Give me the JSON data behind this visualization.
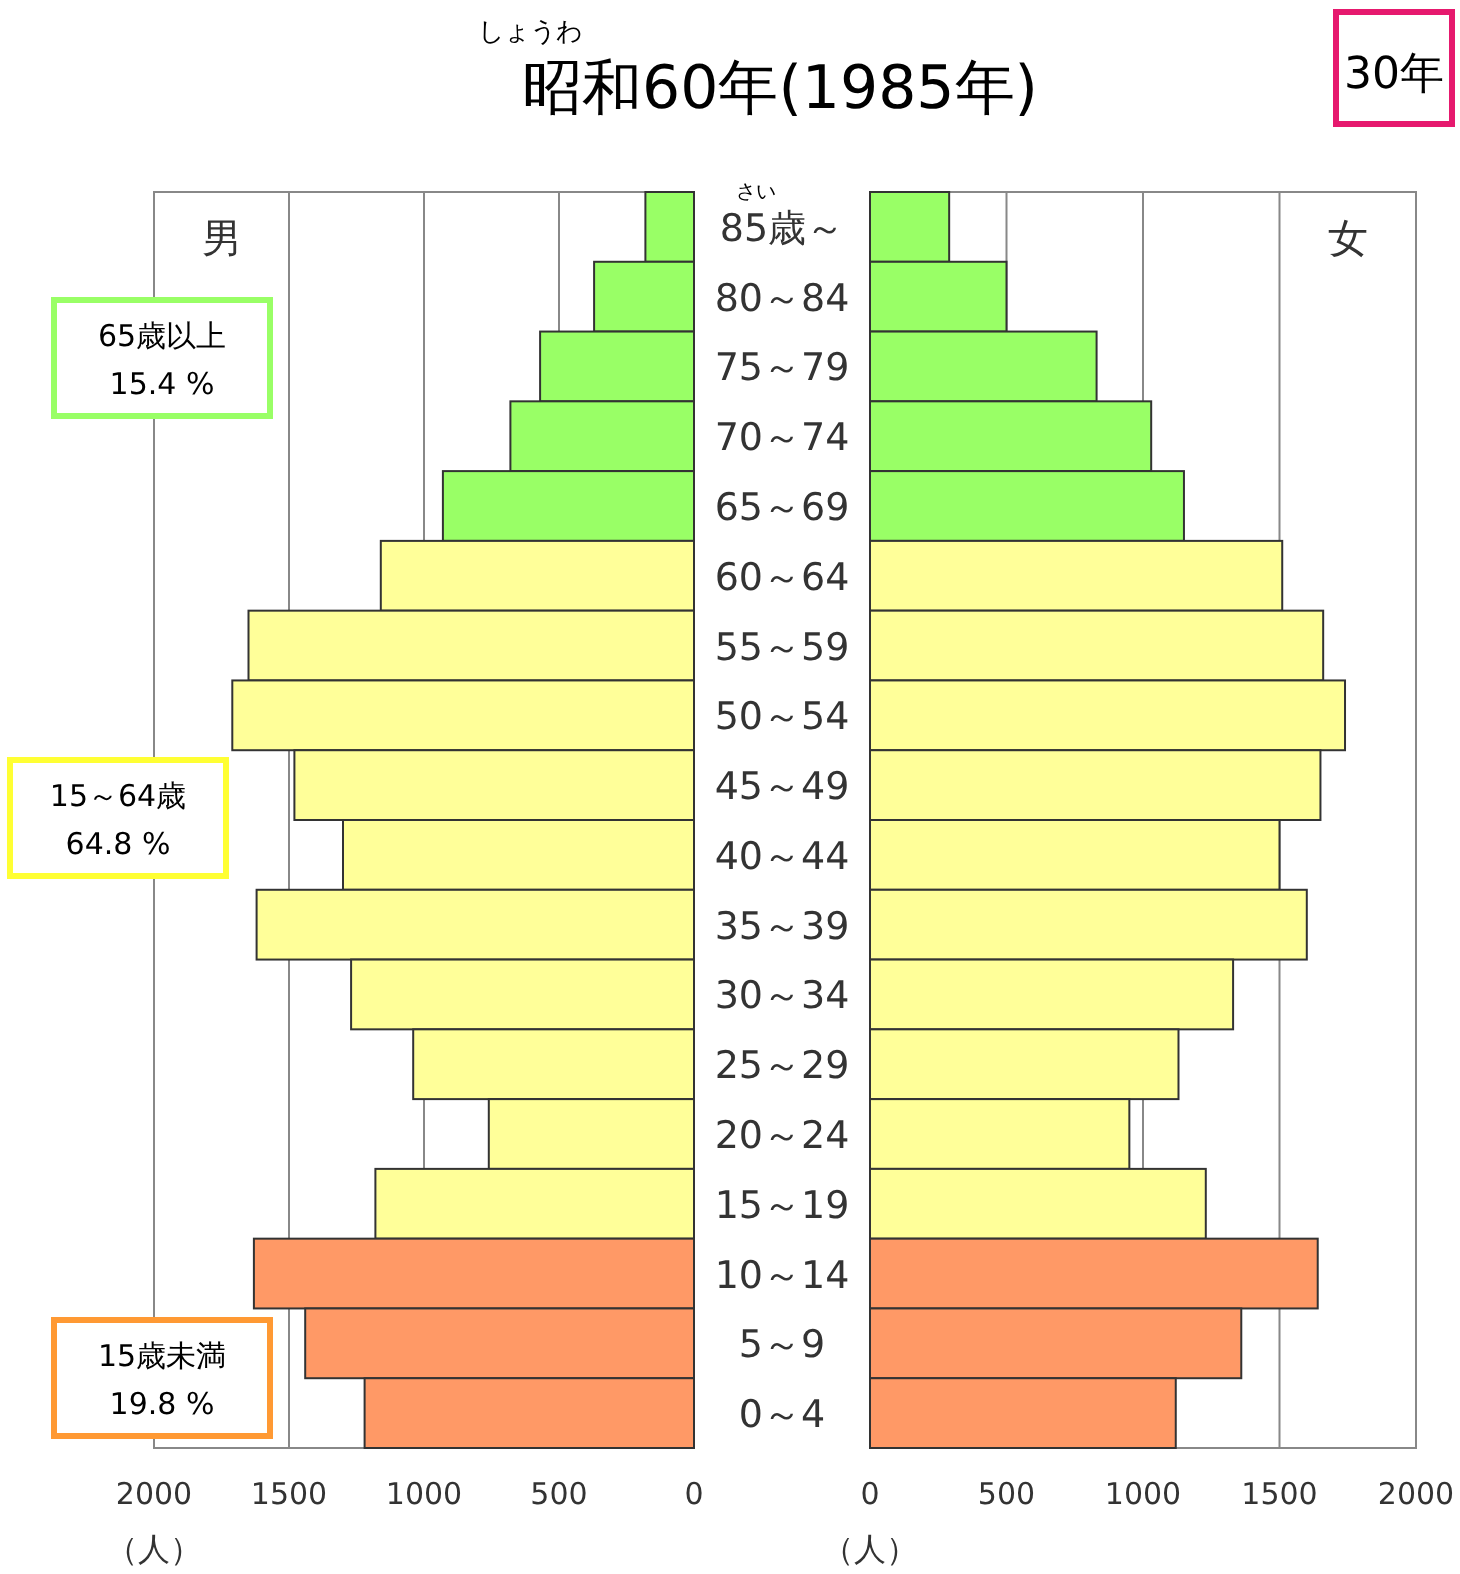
{
  "chart_data": [
    {
      "type": "bar",
      "orientation": "horizontal",
      "title": "昭和60年(1985年)",
      "xlabel": "（人）",
      "categories": [
        "85歳～",
        "80～84",
        "75～79",
        "70～74",
        "65～69",
        "60～64",
        "55～59",
        "50～54",
        "45～49",
        "40～44",
        "35～39",
        "30～34",
        "25～29",
        "20～24",
        "15～19",
        "10～14",
        "5～9",
        "0～4"
      ],
      "values": [
        180,
        370,
        570,
        680,
        930,
        1160,
        1650,
        1710,
        1480,
        1300,
        1620,
        1270,
        1040,
        760,
        1180,
        1630,
        1440,
        1220
      ],
      "colors": [
        "#99ff66",
        "#99ff66",
        "#99ff66",
        "#99ff66",
        "#99ff66",
        "#ffff99",
        "#ffff99",
        "#ffff99",
        "#ffff99",
        "#ffff99",
        "#ffff99",
        "#ffff99",
        "#ffff99",
        "#ffff99",
        "#ffff99",
        "#ff9966",
        "#ff9966",
        "#ff9966"
      ],
      "xlim": [
        2000,
        0
      ],
      "xticks": [
        2000,
        1500,
        1000,
        500,
        0
      ],
      "grid": "x",
      "annotations": [
        "しょうわ",
        "さい",
        "男",
        "65歳以上\n15.4 %",
        "15～64歳\n64.8 %",
        "15歳未満\n19.8 %",
        "30年"
      ]
    },
    {
      "type": "bar",
      "orientation": "horizontal",
      "xlabel": "（人）",
      "tick_labels": "x",
      "categories": [
        "85歳～",
        "80～84",
        "75～79",
        "70～74",
        "65～69",
        "60～64",
        "55～59",
        "50～54",
        "45～49",
        "40～44",
        "35～39",
        "30～34",
        "25～29",
        "20～24",
        "15～19",
        "10～14",
        "5～9",
        "0～4"
      ],
      "values": [
        290,
        500,
        830,
        1030,
        1150,
        1510,
        1660,
        1740,
        1650,
        1500,
        1600,
        1330,
        1130,
        950,
        1230,
        1640,
        1360,
        1120
      ],
      "colors": [
        "#99ff66",
        "#99ff66",
        "#99ff66",
        "#99ff66",
        "#99ff66",
        "#ffff99",
        "#ffff99",
        "#ffff99",
        "#ffff99",
        "#ffff99",
        "#ffff99",
        "#ffff99",
        "#ffff99",
        "#ffff99",
        "#ffff99",
        "#ff9966",
        "#ff9966",
        "#ff9966"
      ],
      "xlim": [
        0,
        2000
      ],
      "xticks": [
        0,
        500,
        1000,
        1500,
        2000
      ],
      "grid": "x",
      "annotations": [
        "女"
      ]
    }
  ]
}
